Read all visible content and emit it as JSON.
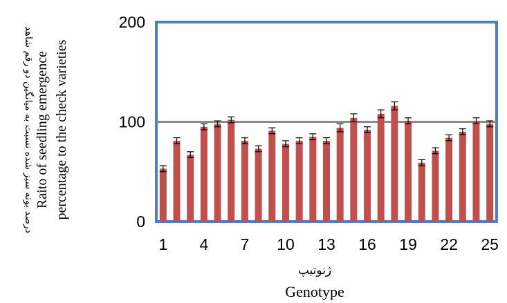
{
  "chart_data": {
    "type": "bar",
    "categories": [
      "1",
      "2",
      "3",
      "4",
      "5",
      "6",
      "7",
      "8",
      "9",
      "10",
      "11",
      "12",
      "13",
      "14",
      "15",
      "16",
      "17",
      "18",
      "19",
      "20",
      "21",
      "22",
      "23",
      "24",
      "25"
    ],
    "x_tick_labels": [
      "1",
      "4",
      "7",
      "10",
      "13",
      "16",
      "19",
      "22",
      "25"
    ],
    "values": [
      53,
      81,
      67,
      95,
      98,
      102,
      81,
      73,
      91,
      78,
      81,
      85,
      81,
      94,
      104,
      92,
      108,
      116,
      101,
      59,
      71,
      84,
      90,
      101,
      98
    ],
    "errors": [
      3,
      3,
      3,
      3,
      3,
      3,
      3,
      3,
      3,
      3,
      3,
      3,
      3,
      4,
      4,
      3,
      4,
      4,
      3,
      3,
      3,
      3,
      3,
      3,
      3
    ],
    "ylim": [
      0,
      200
    ],
    "y_ticks": [
      "0",
      "100",
      "200"
    ],
    "reference_line": 100,
    "xlabel_fa": "ژنوتیپ",
    "xlabel": "Genotype",
    "ylabel_fa": "درصد بوته سبز شده نسبت به میانگین دو رقم شاهد",
    "ylabel_line1": "Raito of seedling emergence",
    "ylabel_line2": "percentage to the check varieties",
    "colors": {
      "bar": "#c0504d",
      "frame": "#4f81bd",
      "reference_line": "#8c8c8c",
      "error_bar": "#000000"
    }
  }
}
